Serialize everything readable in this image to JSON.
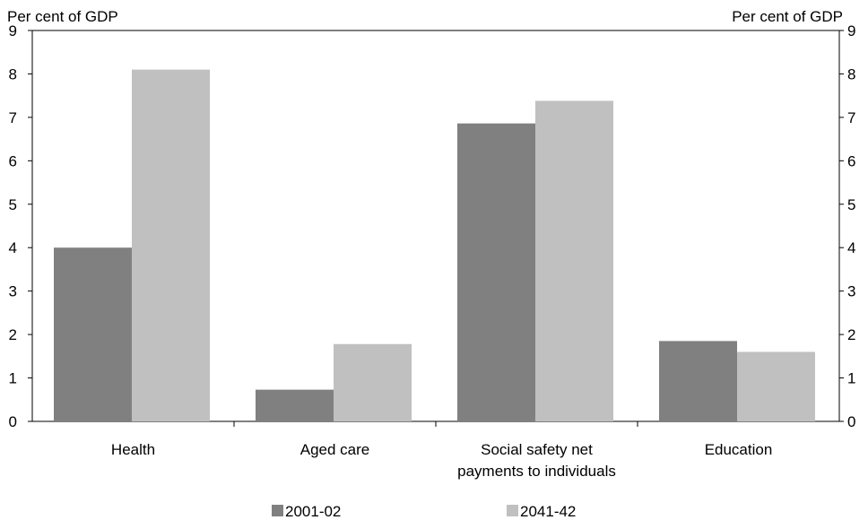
{
  "chart_data": {
    "type": "bar",
    "y_unit_left": "Per cent of GDP",
    "y_unit_right": "Per cent of GDP",
    "ylim": [
      0,
      9
    ],
    "yticks": [
      0,
      1,
      2,
      3,
      4,
      5,
      6,
      7,
      8,
      9
    ],
    "grid": false,
    "legend_position": "bottom",
    "categories": [
      [
        "Health"
      ],
      [
        "Aged care"
      ],
      [
        "Social safety net",
        "payments to individuals"
      ],
      [
        "Education"
      ]
    ],
    "series": [
      {
        "name": "2001-02",
        "color": "#808080",
        "values": [
          4.0,
          0.73,
          6.86,
          1.85
        ]
      },
      {
        "name": "2041-42",
        "color": "#c0c0c0",
        "values": [
          8.1,
          1.78,
          7.38,
          1.6
        ]
      }
    ]
  }
}
